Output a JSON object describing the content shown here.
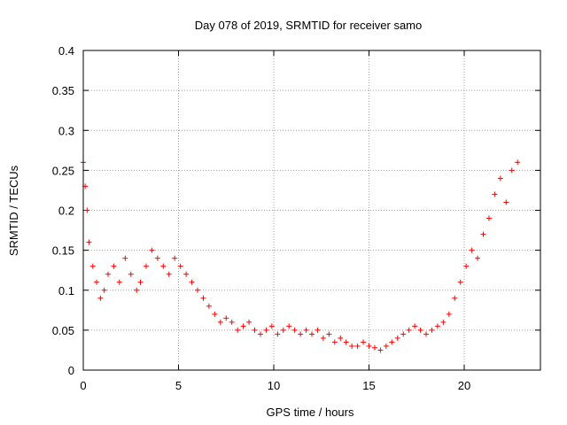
{
  "chart_data": {
    "type": "scatter",
    "title": "Day 078 of 2019, SRMTID for receiver samo",
    "xlabel": "GPS time / hours",
    "ylabel": "SRMTID / TECUs",
    "xlim": [
      0,
      24
    ],
    "ylim": [
      0,
      0.4
    ],
    "xticks": [
      0,
      5,
      10,
      15,
      20
    ],
    "xtick_labels": [
      "0",
      "5",
      "10",
      "15",
      "20"
    ],
    "yticks": [
      0,
      0.05,
      0.1,
      0.15,
      0.2,
      0.25,
      0.3,
      0.35,
      0.4
    ],
    "ytick_labels": [
      "0",
      "0.05",
      "0.1",
      "0.15",
      "0.2",
      "0.25",
      "0.3",
      "0.35",
      "0.4"
    ],
    "grid": true,
    "marker": "+",
    "series": [
      {
        "name": "SRMTID",
        "color": "#ff0000",
        "x": [
          0.0,
          0.1,
          0.2,
          0.3,
          0.5,
          0.7,
          0.9,
          1.1,
          1.3,
          1.6,
          1.9,
          2.2,
          2.5,
          2.8,
          3.0,
          3.3,
          3.6,
          3.9,
          4.2,
          4.5,
          4.8,
          5.1,
          5.4,
          5.7,
          6.0,
          6.3,
          6.6,
          6.9,
          7.2,
          7.5,
          7.8,
          8.1,
          8.4,
          8.7,
          9.0,
          9.3,
          9.6,
          9.9,
          10.2,
          10.5,
          10.8,
          11.1,
          11.4,
          11.7,
          12.0,
          12.3,
          12.6,
          12.9,
          13.2,
          13.5,
          13.8,
          14.1,
          14.4,
          14.7,
          15.0,
          15.3,
          15.6,
          15.9,
          16.2,
          16.5,
          16.8,
          17.1,
          17.4,
          17.7,
          18.0,
          18.3,
          18.6,
          18.9,
          19.2,
          19.5,
          19.8,
          20.1,
          20.4,
          20.7,
          21.0,
          21.3,
          21.6,
          21.9,
          22.2,
          22.5,
          22.8
        ],
        "y": [
          0.26,
          0.23,
          0.2,
          0.16,
          0.13,
          0.11,
          0.09,
          0.1,
          0.12,
          0.13,
          0.11,
          0.14,
          0.12,
          0.1,
          0.11,
          0.13,
          0.15,
          0.14,
          0.13,
          0.12,
          0.14,
          0.13,
          0.12,
          0.11,
          0.1,
          0.09,
          0.08,
          0.07,
          0.06,
          0.065,
          0.06,
          0.05,
          0.055,
          0.06,
          0.05,
          0.045,
          0.05,
          0.055,
          0.045,
          0.05,
          0.055,
          0.05,
          0.045,
          0.05,
          0.045,
          0.05,
          0.04,
          0.045,
          0.035,
          0.04,
          0.035,
          0.03,
          0.03,
          0.035,
          0.03,
          0.028,
          0.025,
          0.03,
          0.035,
          0.04,
          0.045,
          0.05,
          0.055,
          0.05,
          0.045,
          0.05,
          0.055,
          0.06,
          0.07,
          0.09,
          0.11,
          0.13,
          0.15,
          0.14,
          0.17,
          0.19,
          0.22,
          0.24,
          0.21,
          0.25,
          0.26
        ]
      }
    ]
  }
}
